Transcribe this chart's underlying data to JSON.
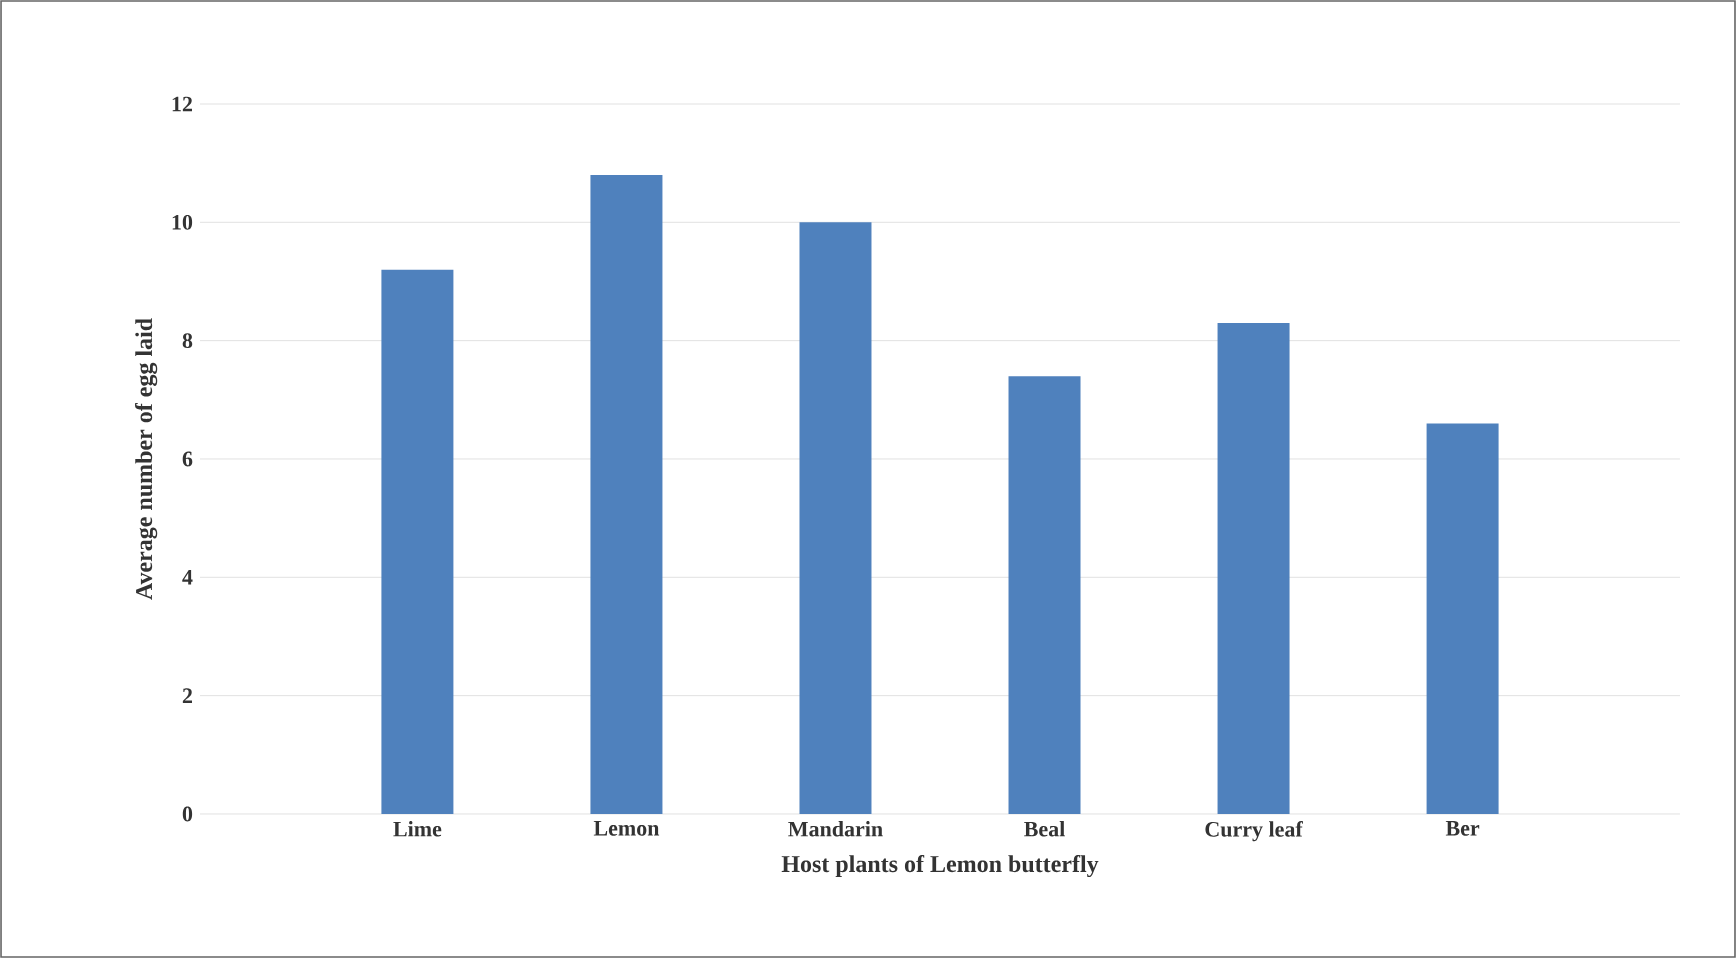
{
  "chart_data": {
    "type": "bar",
    "xlabel": "Host plants of Lemon butterfly",
    "ylabel": "Average number of egg laid",
    "categories": [
      "Lime",
      "Lemon",
      "Mandarin",
      "Beal",
      "Curry leaf",
      "Ber"
    ],
    "values": [
      9.2,
      10.8,
      10.0,
      7.4,
      8.3,
      6.6
    ],
    "color": "#4f81bd",
    "ylim": [
      0,
      12
    ],
    "yticks": [
      0,
      2,
      4,
      6,
      8,
      10,
      12
    ],
    "grid": "y"
  }
}
